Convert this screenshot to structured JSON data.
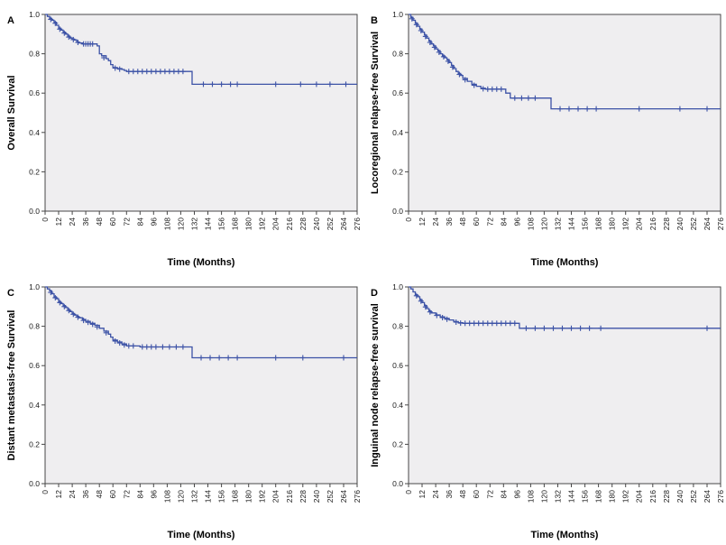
{
  "style": {
    "curve_color": "#3c52a6",
    "plot_bg": "#efeef0",
    "frame_color": "#474747",
    "text_color": "#000000",
    "page_bg": "#ffffff"
  },
  "chart_data": [
    {
      "type": "line",
      "subtype": "kaplan_meier_step",
      "panel": "A",
      "xlabel": "Time (Months)",
      "ylabel": "Overall Survival",
      "xlim": [
        0,
        276
      ],
      "ylim": [
        0.0,
        1.0
      ],
      "xticks": [
        0,
        12,
        24,
        36,
        48,
        60,
        72,
        84,
        96,
        108,
        120,
        132,
        144,
        156,
        168,
        180,
        192,
        204,
        216,
        228,
        240,
        252,
        264,
        276
      ],
      "yticks": [
        0.0,
        0.2,
        0.4,
        0.6,
        0.8,
        1.0
      ],
      "grid": false,
      "legend": "none",
      "series": [
        {
          "name": "Overall Survival",
          "x": [
            0,
            2,
            4,
            6,
            8,
            10,
            12,
            14,
            16,
            18,
            20,
            22,
            24,
            26,
            28,
            30,
            33,
            46,
            48,
            50,
            54,
            56,
            58,
            60,
            64,
            68,
            70,
            72,
            130,
            276
          ],
          "y": [
            1.0,
            0.99,
            0.98,
            0.97,
            0.96,
            0.945,
            0.93,
            0.92,
            0.91,
            0.9,
            0.89,
            0.88,
            0.875,
            0.87,
            0.86,
            0.855,
            0.85,
            0.84,
            0.8,
            0.79,
            0.775,
            0.765,
            0.745,
            0.73,
            0.725,
            0.72,
            0.715,
            0.71,
            0.645,
            0.645
          ]
        }
      ],
      "censor_marks": [
        [
          5,
          0.975
        ],
        [
          9,
          0.955
        ],
        [
          13,
          0.925
        ],
        [
          17,
          0.905
        ],
        [
          21,
          0.885
        ],
        [
          25,
          0.872
        ],
        [
          29,
          0.858
        ],
        [
          34,
          0.85
        ],
        [
          36,
          0.85
        ],
        [
          38,
          0.85
        ],
        [
          40,
          0.85
        ],
        [
          42,
          0.85
        ],
        [
          52,
          0.78
        ],
        [
          62,
          0.727
        ],
        [
          66,
          0.722
        ],
        [
          74,
          0.71
        ],
        [
          78,
          0.71
        ],
        [
          82,
          0.71
        ],
        [
          86,
          0.71
        ],
        [
          90,
          0.71
        ],
        [
          94,
          0.71
        ],
        [
          98,
          0.71
        ],
        [
          102,
          0.71
        ],
        [
          106,
          0.71
        ],
        [
          110,
          0.71
        ],
        [
          114,
          0.71
        ],
        [
          118,
          0.71
        ],
        [
          122,
          0.71
        ],
        [
          140,
          0.645
        ],
        [
          148,
          0.645
        ],
        [
          156,
          0.645
        ],
        [
          164,
          0.645
        ],
        [
          170,
          0.645
        ],
        [
          204,
          0.645
        ],
        [
          226,
          0.645
        ],
        [
          240,
          0.645
        ],
        [
          252,
          0.645
        ],
        [
          266,
          0.645
        ]
      ]
    },
    {
      "type": "line",
      "subtype": "kaplan_meier_step",
      "panel": "B",
      "xlabel": "Time (Months)",
      "ylabel": "Locoregional relapse-free Survival",
      "xlim": [
        0,
        276
      ],
      "ylim": [
        0.0,
        1.0
      ],
      "xticks": [
        0,
        12,
        24,
        36,
        48,
        60,
        72,
        84,
        96,
        108,
        120,
        132,
        144,
        156,
        168,
        180,
        192,
        204,
        216,
        228,
        240,
        252,
        264,
        276
      ],
      "yticks": [
        0.0,
        0.2,
        0.4,
        0.6,
        0.8,
        1.0
      ],
      "grid": false,
      "legend": "none",
      "series": [
        {
          "name": "Locoregional relapse-free Survival",
          "x": [
            0,
            2,
            4,
            6,
            8,
            10,
            12,
            14,
            16,
            18,
            20,
            22,
            24,
            26,
            28,
            30,
            32,
            34,
            36,
            38,
            40,
            42,
            44,
            46,
            48,
            52,
            56,
            60,
            64,
            68,
            86,
            90,
            126,
            276
          ],
          "y": [
            1.0,
            0.985,
            0.97,
            0.955,
            0.94,
            0.925,
            0.91,
            0.895,
            0.88,
            0.865,
            0.85,
            0.84,
            0.825,
            0.815,
            0.8,
            0.79,
            0.78,
            0.77,
            0.755,
            0.74,
            0.725,
            0.71,
            0.7,
            0.69,
            0.675,
            0.66,
            0.645,
            0.635,
            0.625,
            0.62,
            0.6,
            0.575,
            0.52,
            0.52
          ]
        }
      ],
      "censor_marks": [
        [
          3,
          0.978
        ],
        [
          7,
          0.948
        ],
        [
          11,
          0.918
        ],
        [
          15,
          0.888
        ],
        [
          19,
          0.858
        ],
        [
          23,
          0.833
        ],
        [
          27,
          0.808
        ],
        [
          31,
          0.785
        ],
        [
          35,
          0.762
        ],
        [
          39,
          0.732
        ],
        [
          45,
          0.695
        ],
        [
          50,
          0.668
        ],
        [
          58,
          0.64
        ],
        [
          66,
          0.622
        ],
        [
          70,
          0.62
        ],
        [
          74,
          0.62
        ],
        [
          78,
          0.62
        ],
        [
          82,
          0.62
        ],
        [
          94,
          0.575
        ],
        [
          100,
          0.575
        ],
        [
          106,
          0.575
        ],
        [
          112,
          0.575
        ],
        [
          134,
          0.52
        ],
        [
          142,
          0.52
        ],
        [
          150,
          0.52
        ],
        [
          158,
          0.52
        ],
        [
          166,
          0.52
        ],
        [
          204,
          0.52
        ],
        [
          240,
          0.52
        ],
        [
          264,
          0.52
        ]
      ]
    },
    {
      "type": "line",
      "subtype": "kaplan_meier_step",
      "panel": "C",
      "xlabel": "Time (Months)",
      "ylabel": "Distant metastasis-free Survival",
      "xlim": [
        0,
        276
      ],
      "ylim": [
        0.0,
        1.0
      ],
      "xticks": [
        0,
        12,
        24,
        36,
        48,
        60,
        72,
        84,
        96,
        108,
        120,
        132,
        144,
        156,
        168,
        180,
        192,
        204,
        216,
        228,
        240,
        252,
        264,
        276
      ],
      "yticks": [
        0.0,
        0.2,
        0.4,
        0.6,
        0.8,
        1.0
      ],
      "grid": false,
      "legend": "none",
      "series": [
        {
          "name": "Distant metastasis-free Survival",
          "x": [
            0,
            2,
            4,
            6,
            8,
            10,
            12,
            14,
            16,
            18,
            20,
            22,
            24,
            26,
            28,
            30,
            33,
            36,
            40,
            44,
            48,
            52,
            56,
            58,
            60,
            64,
            68,
            72,
            84,
            130,
            276
          ],
          "y": [
            1.0,
            0.99,
            0.98,
            0.965,
            0.95,
            0.94,
            0.925,
            0.915,
            0.905,
            0.895,
            0.885,
            0.875,
            0.865,
            0.857,
            0.85,
            0.843,
            0.835,
            0.825,
            0.815,
            0.805,
            0.79,
            0.775,
            0.76,
            0.745,
            0.73,
            0.72,
            0.71,
            0.7,
            0.695,
            0.64,
            0.64
          ]
        }
      ],
      "censor_marks": [
        [
          5,
          0.972
        ],
        [
          9,
          0.945
        ],
        [
          13,
          0.92
        ],
        [
          17,
          0.9
        ],
        [
          21,
          0.88
        ],
        [
          25,
          0.861
        ],
        [
          29,
          0.846
        ],
        [
          34,
          0.83
        ],
        [
          38,
          0.82
        ],
        [
          42,
          0.81
        ],
        [
          46,
          0.797
        ],
        [
          54,
          0.767
        ],
        [
          62,
          0.725
        ],
        [
          66,
          0.715
        ],
        [
          70,
          0.705
        ],
        [
          74,
          0.7
        ],
        [
          78,
          0.7
        ],
        [
          86,
          0.695
        ],
        [
          90,
          0.695
        ],
        [
          94,
          0.695
        ],
        [
          98,
          0.695
        ],
        [
          104,
          0.695
        ],
        [
          110,
          0.695
        ],
        [
          116,
          0.695
        ],
        [
          122,
          0.695
        ],
        [
          138,
          0.64
        ],
        [
          146,
          0.64
        ],
        [
          154,
          0.64
        ],
        [
          162,
          0.64
        ],
        [
          170,
          0.64
        ],
        [
          204,
          0.64
        ],
        [
          228,
          0.64
        ],
        [
          264,
          0.64
        ]
      ]
    },
    {
      "type": "line",
      "subtype": "kaplan_meier_step",
      "panel": "D",
      "xlabel": "Time (Months)",
      "ylabel": "Inguinal node relapse-free survival",
      "xlim": [
        0,
        276
      ],
      "ylim": [
        0.0,
        1.0
      ],
      "xticks": [
        0,
        12,
        24,
        36,
        48,
        60,
        72,
        84,
        96,
        108,
        120,
        132,
        144,
        156,
        168,
        180,
        192,
        204,
        216,
        228,
        240,
        252,
        264,
        276
      ],
      "yticks": [
        0.0,
        0.2,
        0.4,
        0.6,
        0.8,
        1.0
      ],
      "grid": false,
      "legend": "none",
      "series": [
        {
          "name": "Inguinal node relapse-free survival",
          "x": [
            0,
            2,
            4,
            6,
            8,
            10,
            12,
            14,
            16,
            18,
            20,
            24,
            28,
            32,
            36,
            40,
            44,
            48,
            98,
            276
          ],
          "y": [
            1.0,
            0.99,
            0.975,
            0.96,
            0.95,
            0.935,
            0.92,
            0.905,
            0.89,
            0.878,
            0.868,
            0.858,
            0.848,
            0.84,
            0.832,
            0.824,
            0.818,
            0.815,
            0.79,
            0.79
          ]
        }
      ],
      "censor_marks": [
        [
          7,
          0.955
        ],
        [
          11,
          0.928
        ],
        [
          15,
          0.898
        ],
        [
          19,
          0.873
        ],
        [
          25,
          0.855
        ],
        [
          30,
          0.844
        ],
        [
          34,
          0.836
        ],
        [
          42,
          0.821
        ],
        [
          46,
          0.816
        ],
        [
          50,
          0.815
        ],
        [
          54,
          0.815
        ],
        [
          58,
          0.815
        ],
        [
          62,
          0.815
        ],
        [
          66,
          0.815
        ],
        [
          70,
          0.815
        ],
        [
          74,
          0.815
        ],
        [
          78,
          0.815
        ],
        [
          82,
          0.815
        ],
        [
          86,
          0.815
        ],
        [
          90,
          0.815
        ],
        [
          94,
          0.815
        ],
        [
          104,
          0.79
        ],
        [
          112,
          0.79
        ],
        [
          120,
          0.79
        ],
        [
          128,
          0.79
        ],
        [
          136,
          0.79
        ],
        [
          144,
          0.79
        ],
        [
          152,
          0.79
        ],
        [
          160,
          0.79
        ],
        [
          170,
          0.79
        ],
        [
          264,
          0.79
        ]
      ]
    }
  ]
}
